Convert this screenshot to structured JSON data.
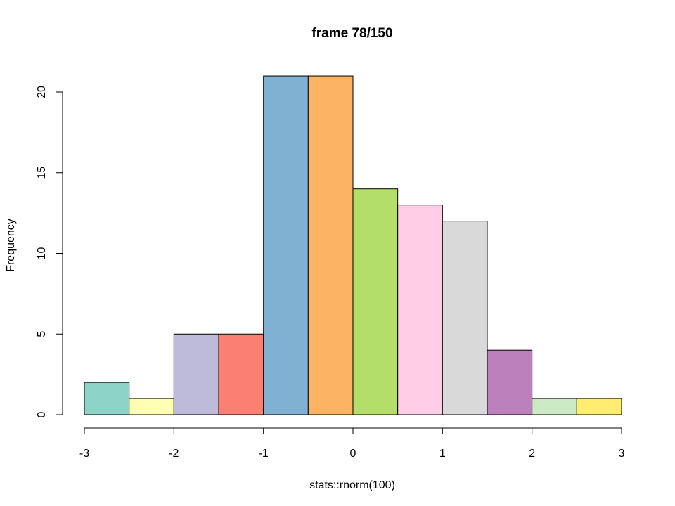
{
  "chart_data": {
    "type": "bar",
    "title": "frame 78/150",
    "xlabel": "stats::rnorm(100)",
    "ylabel": "Frequency",
    "bins": [
      {
        "x0": -3.0,
        "x1": -2.5,
        "count": 2,
        "color": "#8DD3C7"
      },
      {
        "x0": -2.5,
        "x1": -2.0,
        "count": 1,
        "color": "#FFFFB3"
      },
      {
        "x0": -2.0,
        "x1": -1.5,
        "count": 5,
        "color": "#BEBADA"
      },
      {
        "x0": -1.5,
        "x1": -1.0,
        "count": 5,
        "color": "#FB8072"
      },
      {
        "x0": -1.0,
        "x1": -0.5,
        "count": 21,
        "color": "#80B1D3"
      },
      {
        "x0": -0.5,
        "x1": 0.0,
        "count": 21,
        "color": "#FDB462"
      },
      {
        "x0": 0.0,
        "x1": 0.5,
        "count": 14,
        "color": "#B3DE69"
      },
      {
        "x0": 0.5,
        "x1": 1.0,
        "count": 13,
        "color": "#FCCDE5"
      },
      {
        "x0": 1.0,
        "x1": 1.5,
        "count": 12,
        "color": "#D9D9D9"
      },
      {
        "x0": 1.5,
        "x1": 2.0,
        "count": 4,
        "color": "#BC80BD"
      },
      {
        "x0": 2.0,
        "x1": 2.5,
        "count": 1,
        "color": "#CCEBC5"
      },
      {
        "x0": 2.5,
        "x1": 3.0,
        "count": 1,
        "color": "#FFED6F"
      }
    ],
    "xticks": [
      -3,
      -2,
      -1,
      0,
      1,
      2,
      3
    ],
    "xtick_labels": [
      "-3",
      "-2",
      "-1",
      "0",
      "1",
      "2",
      "3"
    ],
    "yticks": [
      0,
      5,
      10,
      15,
      20
    ],
    "ytick_labels": [
      "0",
      "5",
      "10",
      "15",
      "20"
    ],
    "xlim": [
      -3,
      3
    ],
    "ylim": [
      0,
      21
    ],
    "grid": false,
    "legend": "none"
  }
}
